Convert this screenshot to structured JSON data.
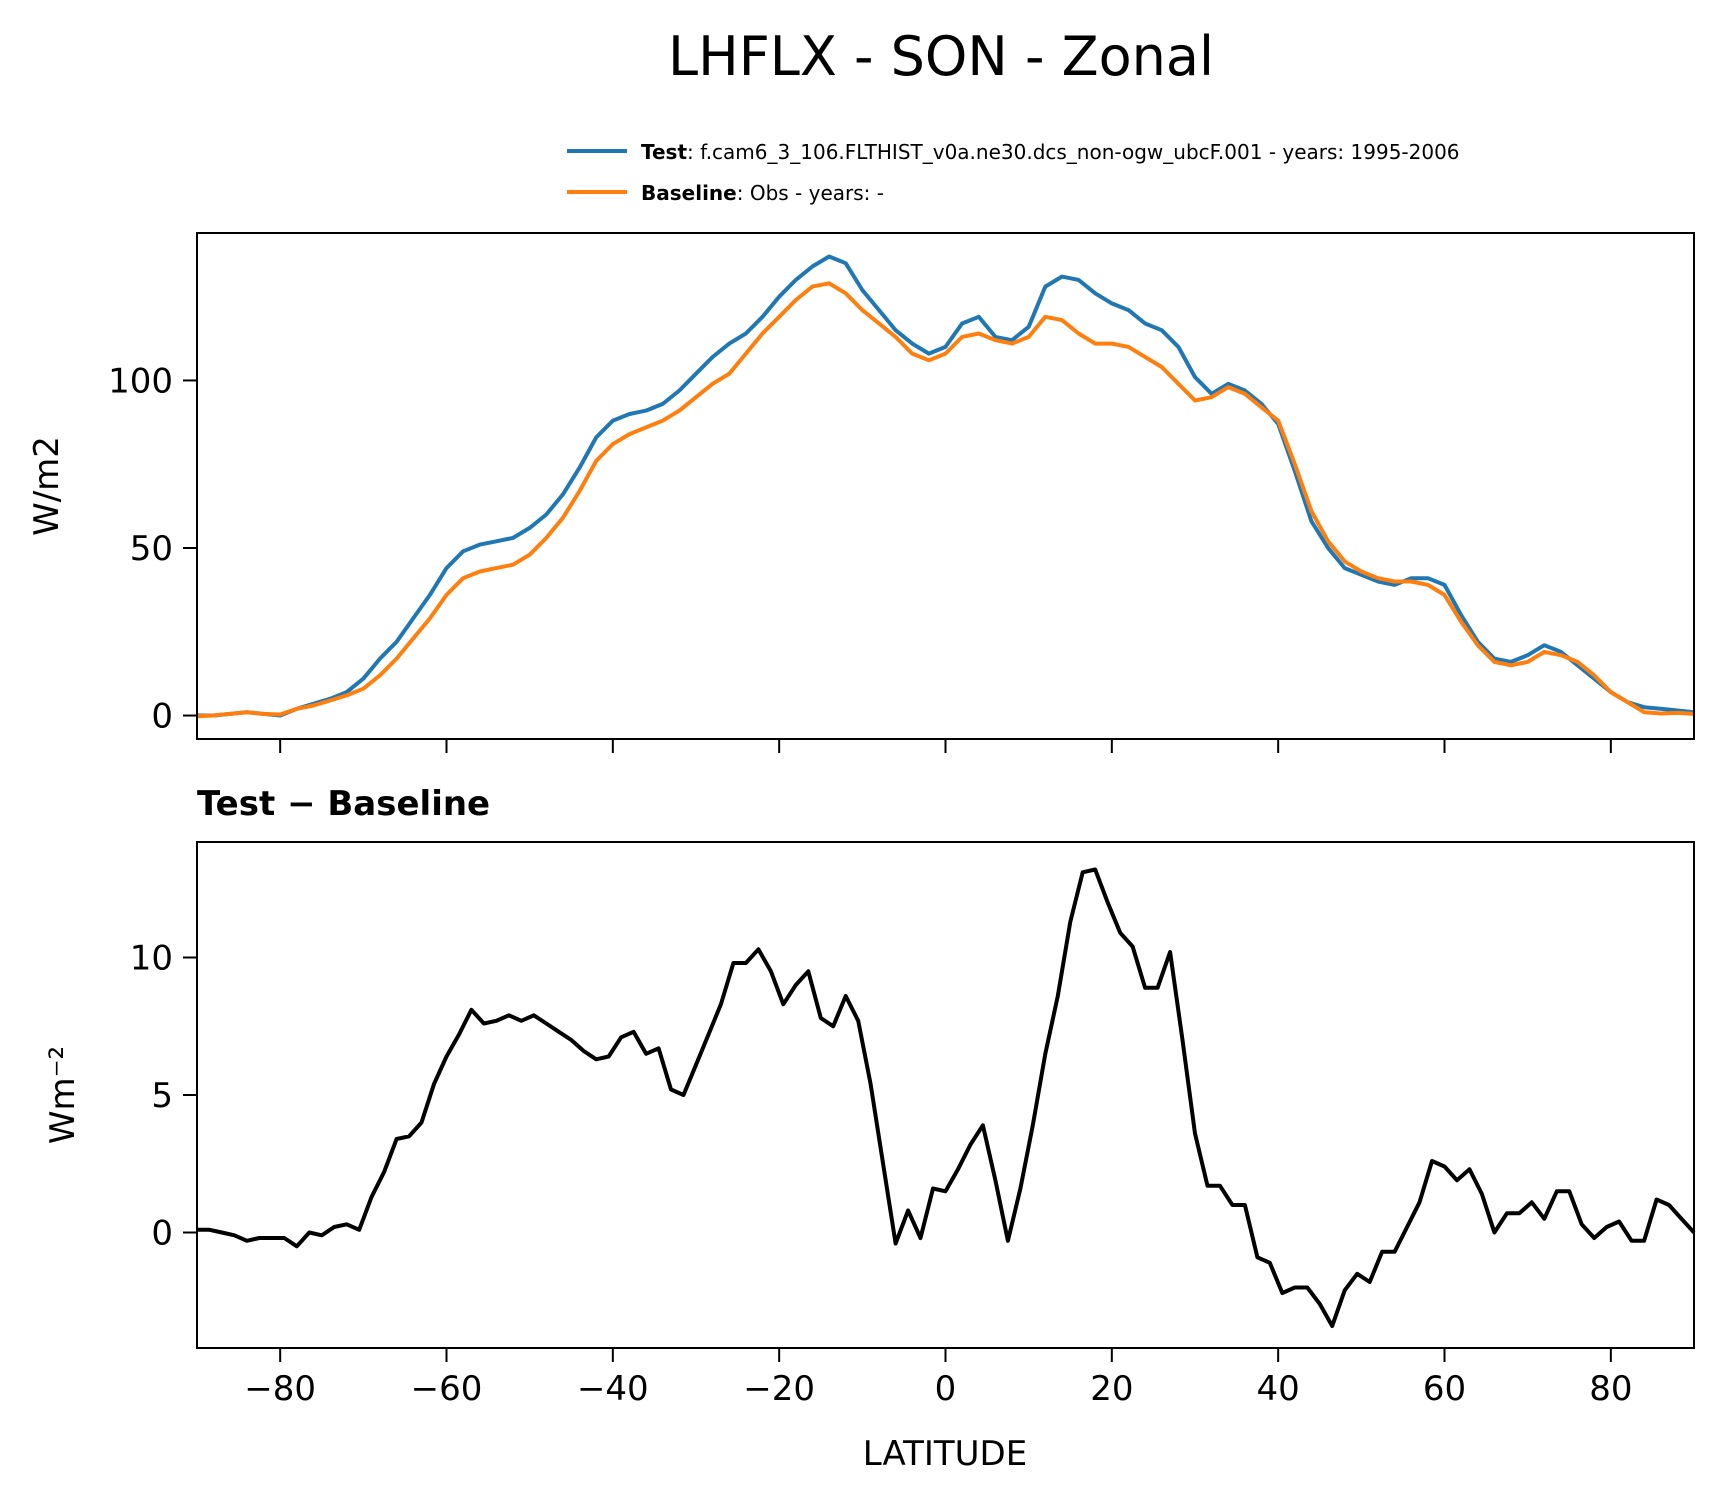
{
  "title": "LHFLX - SON - Zonal",
  "legend": {
    "test_label": "Test",
    "test_desc": ": f.cam6_3_106.FLTHIST_v0a.ne30.dcs_non-ogw_ubcF.001 - years: 1995-2006",
    "baseline_label": "Baseline",
    "baseline_desc": ": Obs - years: -"
  },
  "colors": {
    "test": "#1f77b4",
    "baseline": "#ff7f0e",
    "diff": "#000000"
  },
  "chart_data": [
    {
      "type": "line",
      "title": "",
      "xlabel": "",
      "ylabel": "W/m2",
      "xlim": [
        -90,
        90
      ],
      "ylim": [
        -7,
        144
      ],
      "xticks": [
        -80,
        -60,
        -40,
        -20,
        0,
        20,
        40,
        60,
        80
      ],
      "yticks": [
        0,
        50,
        100
      ],
      "ytick_labels": [
        "0",
        "50",
        "100"
      ],
      "x": [
        -90,
        -88,
        -86,
        -84,
        -82,
        -80,
        -78,
        -76,
        -74,
        -72,
        -70,
        -68,
        -66,
        -64,
        -62,
        -60,
        -58,
        -56,
        -54,
        -52,
        -50,
        -48,
        -46,
        -44,
        -42,
        -40,
        -38,
        -36,
        -34,
        -32,
        -30,
        -28,
        -26,
        -24,
        -22,
        -20,
        -18,
        -16,
        -14,
        -12,
        -10,
        -8,
        -6,
        -4,
        -2,
        0,
        2,
        4,
        6,
        8,
        10,
        12,
        14,
        16,
        18,
        20,
        22,
        24,
        26,
        28,
        30,
        32,
        34,
        36,
        38,
        40,
        42,
        44,
        46,
        48,
        50,
        52,
        54,
        56,
        58,
        60,
        62,
        64,
        66,
        68,
        70,
        72,
        74,
        76,
        78,
        80,
        82,
        84,
        86,
        88,
        90
      ],
      "series": [
        {
          "name": "Test",
          "values": [
            0,
            0,
            0.5,
            1,
            0.5,
            0,
            2,
            3.5,
            5,
            7,
            11,
            17,
            22,
            29,
            36,
            44,
            49,
            51,
            52,
            53,
            56,
            60,
            66,
            74,
            83,
            88,
            90,
            91,
            93,
            97,
            102,
            107,
            111,
            114,
            119,
            125,
            130,
            134,
            137,
            135,
            127,
            121,
            115,
            111,
            108,
            110,
            117,
            119,
            113,
            112,
            116,
            128,
            131,
            130,
            126,
            123,
            121,
            117,
            115,
            110,
            101,
            96,
            99,
            97,
            93,
            87,
            73,
            58,
            50,
            44,
            42,
            40,
            39,
            41,
            41,
            39,
            30,
            22,
            17,
            16,
            18,
            21,
            19,
            15,
            11,
            7,
            4,
            2.5,
            2,
            1.5,
            1
          ]
        },
        {
          "name": "Baseline",
          "values": [
            -0.2,
            0,
            0.5,
            1,
            0.5,
            0.3,
            2,
            3,
            4.5,
            6,
            8,
            12,
            17,
            23,
            29,
            36,
            41,
            43,
            44,
            45,
            48,
            53,
            59,
            67,
            76,
            81,
            84,
            86,
            88,
            91,
            95,
            99,
            102,
            108,
            114,
            119,
            124,
            128,
            129,
            126,
            121,
            117,
            113,
            108,
            106,
            108,
            113,
            114,
            112,
            111,
            113,
            119,
            118,
            114,
            111,
            111,
            110,
            107,
            104,
            99,
            94,
            95,
            98,
            96,
            92,
            88,
            75,
            61,
            52,
            46,
            43,
            41,
            40,
            40,
            39,
            36,
            28,
            21,
            16,
            15,
            16,
            19,
            18,
            16,
            12,
            7,
            4,
            1,
            0.6,
            0.8,
            0.5
          ]
        }
      ]
    },
    {
      "type": "line",
      "title": "Test − Baseline",
      "xlabel": "LATITUDE",
      "ylabel": "Wm⁻²",
      "xlim": [
        -90,
        90
      ],
      "ylim": [
        -4.2,
        14.2
      ],
      "xticks": [
        -80,
        -60,
        -40,
        -20,
        0,
        20,
        40,
        60,
        80
      ],
      "xtick_labels": [
        "−80",
        "−60",
        "−40",
        "−20",
        "0",
        "20",
        "40",
        "60",
        "80"
      ],
      "yticks": [
        0,
        5,
        10
      ],
      "ytick_labels": [
        "0",
        "5",
        "10"
      ],
      "x": [
        -90,
        -88.5,
        -87,
        -85.5,
        -84,
        -82.5,
        -81,
        -79.5,
        -78,
        -76.5,
        -75,
        -73.5,
        -72,
        -70.5,
        -69,
        -67.5,
        -66,
        -64.5,
        -63,
        -61.5,
        -60,
        -58.5,
        -57,
        -55.5,
        -54,
        -52.5,
        -51,
        -49.5,
        -48,
        -46.5,
        -45,
        -43.5,
        -42,
        -40.5,
        -39,
        -37.5,
        -36,
        -34.5,
        -33,
        -31.5,
        -30,
        -28.5,
        -27,
        -25.5,
        -24,
        -22.5,
        -21,
        -19.5,
        -18,
        -16.5,
        -15,
        -13.5,
        -12,
        -10.5,
        -9,
        -7.5,
        -6,
        -4.5,
        -3,
        -1.5,
        0,
        1.5,
        3,
        4.5,
        6,
        7.5,
        9,
        10.5,
        12,
        13.5,
        15,
        16.5,
        18,
        19.5,
        21,
        22.5,
        24,
        25.5,
        27,
        28.5,
        30,
        31.5,
        33,
        34.5,
        36,
        37.5,
        39,
        40.5,
        42,
        43.5,
        45,
        46.5,
        48,
        49.5,
        51,
        52.5,
        54,
        55.5,
        57,
        58.5,
        60,
        61.5,
        63,
        64.5,
        66,
        67.5,
        69,
        70.5,
        72,
        73.5,
        75,
        76.5,
        78,
        79.5,
        81,
        82.5,
        84,
        85.5,
        87,
        88.5,
        90
      ],
      "series": [
        {
          "name": "Test − Baseline",
          "values": [
            0.1,
            0.1,
            0.0,
            -0.1,
            -0.3,
            -0.2,
            -0.2,
            -0.2,
            -0.5,
            0.0,
            -0.1,
            0.2,
            0.3,
            0.1,
            1.3,
            2.2,
            3.4,
            3.5,
            4.0,
            5.4,
            6.4,
            7.2,
            8.1,
            7.6,
            7.7,
            7.9,
            7.7,
            7.9,
            7.6,
            7.3,
            7.0,
            6.6,
            6.3,
            6.4,
            7.1,
            7.3,
            6.5,
            6.7,
            5.2,
            5.0,
            6.1,
            7.2,
            8.3,
            9.8,
            9.8,
            10.3,
            9.5,
            8.3,
            9.0,
            9.5,
            7.8,
            7.5,
            8.6,
            7.7,
            5.4,
            2.5,
            -0.4,
            0.8,
            -0.2,
            1.6,
            1.5,
            2.3,
            3.2,
            3.9,
            1.9,
            -0.3,
            1.6,
            3.9,
            6.5,
            8.6,
            11.3,
            13.1,
            13.2,
            12.0,
            10.9,
            10.4,
            8.9,
            8.9,
            10.2,
            7.0,
            3.6,
            1.7,
            1.7,
            1.0,
            1.0,
            -0.9,
            -1.1,
            -2.2,
            -2.0,
            -2.0,
            -2.6,
            -3.4,
            -2.1,
            -1.5,
            -1.8,
            -0.7,
            -0.7,
            0.2,
            1.1,
            2.6,
            2.4,
            1.9,
            2.3,
            1.4,
            0.0,
            0.7,
            0.7,
            1.1,
            0.5,
            1.5,
            1.5,
            0.3,
            -0.2,
            0.2,
            0.4,
            -0.3,
            -0.3,
            1.2,
            1.0,
            0.5,
            0.0
          ]
        }
      ]
    }
  ]
}
